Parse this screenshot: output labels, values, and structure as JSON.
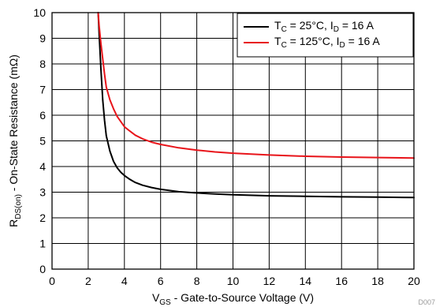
{
  "chart_data": {
    "type": "line",
    "xlabel_main": "V",
    "xlabel_sub": "GS",
    "xlabel_rest": " - Gate-to-Source Voltage (V)",
    "ylabel_main": "R",
    "ylabel_sub": "DS(on)",
    "ylabel_rest": " - On-State Resistance (mΩ)",
    "xlim": [
      0,
      20
    ],
    "ylim": [
      0,
      10
    ],
    "x_ticks": [
      "0",
      "2",
      "4",
      "6",
      "8",
      "10",
      "12",
      "14",
      "16",
      "18",
      "20"
    ],
    "y_ticks": [
      "0",
      "1",
      "2",
      "3",
      "4",
      "5",
      "6",
      "7",
      "8",
      "9",
      "10"
    ],
    "grid": true,
    "legend_position": "top-right",
    "plot_id": "D007",
    "series": [
      {
        "legend_parts": [
          "T",
          "C",
          " = 25°C, I",
          "D",
          " = 16 A"
        ],
        "color": "#000000",
        "x": [
          2.55,
          2.6,
          2.7,
          2.8,
          2.9,
          3.0,
          3.2,
          3.4,
          3.6,
          3.8,
          4.0,
          4.3,
          4.6,
          5.0,
          5.5,
          6.0,
          7.0,
          8.0,
          9.0,
          10.0,
          12.0,
          14.0,
          16.0,
          18.0,
          20.0
        ],
        "y": [
          10.0,
          9.2,
          7.8,
          6.6,
          5.8,
          5.2,
          4.6,
          4.2,
          3.95,
          3.78,
          3.65,
          3.5,
          3.38,
          3.27,
          3.18,
          3.11,
          3.02,
          2.97,
          2.93,
          2.9,
          2.86,
          2.84,
          2.82,
          2.81,
          2.79
        ]
      },
      {
        "legend_parts": [
          "T",
          "C",
          " = 125°C, I",
          "D",
          " = 16 A"
        ],
        "color": "#e8141a",
        "x": [
          2.55,
          2.6,
          2.7,
          2.8,
          2.9,
          3.0,
          3.2,
          3.4,
          3.6,
          3.8,
          4.0,
          4.3,
          4.6,
          5.0,
          5.5,
          6.0,
          7.0,
          8.0,
          9.0,
          10.0,
          12.0,
          14.0,
          16.0,
          18.0,
          20.0
        ],
        "y": [
          10.0,
          9.5,
          8.8,
          8.2,
          7.6,
          7.1,
          6.6,
          6.25,
          5.95,
          5.75,
          5.55,
          5.38,
          5.22,
          5.08,
          4.95,
          4.86,
          4.73,
          4.64,
          4.57,
          4.52,
          4.45,
          4.4,
          4.37,
          4.35,
          4.33
        ]
      }
    ]
  }
}
